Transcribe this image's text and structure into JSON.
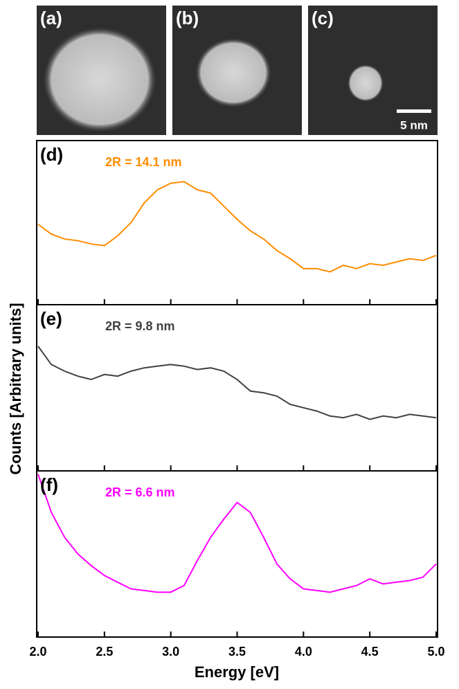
{
  "images": [
    {
      "label": "(a)"
    },
    {
      "label": "(b)"
    },
    {
      "label": "(c)"
    }
  ],
  "scale_bar": "5 nm",
  "chart_data": [
    {
      "type": "line",
      "panel_label": "(d)",
      "annotation": "2R = 14.1 nm",
      "xlim": [
        2.0,
        5.0
      ],
      "ylim": [
        0,
        100
      ],
      "x": [
        2.0,
        2.1,
        2.2,
        2.3,
        2.4,
        2.5,
        2.6,
        2.7,
        2.8,
        2.9,
        3.0,
        3.1,
        3.2,
        3.3,
        3.4,
        3.5,
        3.6,
        3.7,
        3.8,
        3.9,
        4.0,
        4.1,
        4.2,
        4.3,
        4.4,
        4.5,
        4.6,
        4.7,
        4.8,
        4.9,
        5.0
      ],
      "series": [
        {
          "name": "2R = 14.1 nm",
          "color": "#ff8c00",
          "values": [
            49,
            43,
            40,
            39,
            37,
            36,
            42,
            50,
            62,
            70,
            74,
            75,
            70,
            68,
            60,
            52,
            45,
            40,
            33,
            28,
            22,
            22,
            20,
            24,
            22,
            25,
            24,
            26,
            28,
            27,
            30
          ]
        }
      ]
    },
    {
      "type": "line",
      "panel_label": "(e)",
      "annotation": "2R = 9.8 nm",
      "ylabel": "Counts [Arbitrary units]",
      "xlim": [
        2.0,
        5.0
      ],
      "ylim": [
        0,
        100
      ],
      "x": [
        2.0,
        2.1,
        2.2,
        2.3,
        2.4,
        2.5,
        2.6,
        2.7,
        2.8,
        2.9,
        3.0,
        3.1,
        3.2,
        3.3,
        3.4,
        3.5,
        3.6,
        3.7,
        3.8,
        3.9,
        4.0,
        4.1,
        4.2,
        4.3,
        4.4,
        4.5,
        4.6,
        4.7,
        4.8,
        4.9,
        5.0
      ],
      "series": [
        {
          "name": "2R = 9.8 nm",
          "color": "#404040",
          "values": [
            75,
            64,
            60,
            57,
            55,
            58,
            57,
            60,
            62,
            63,
            64,
            63,
            61,
            62,
            60,
            55,
            48,
            47,
            45,
            40,
            38,
            36,
            33,
            32,
            34,
            31,
            33,
            32,
            34,
            33,
            32
          ]
        }
      ]
    },
    {
      "type": "line",
      "panel_label": "(f)",
      "annotation": "2R = 6.6 nm",
      "xlabel": "Energy [eV]",
      "xlim": [
        2.0,
        5.0
      ],
      "ylim": [
        0,
        100
      ],
      "xticks": [
        {
          "value": 2,
          "label": "2.0"
        },
        2.5,
        {
          "value": 3,
          "label": "3.0"
        },
        3.5,
        {
          "value": 4,
          "label": "4.0"
        },
        4.5,
        {
          "value": 5,
          "label": "5.0"
        }
      ],
      "x": [
        2.0,
        2.1,
        2.2,
        2.3,
        2.4,
        2.5,
        2.6,
        2.7,
        2.8,
        2.9,
        3.0,
        3.1,
        3.2,
        3.3,
        3.4,
        3.5,
        3.6,
        3.7,
        3.8,
        3.9,
        4.0,
        4.1,
        4.2,
        4.3,
        4.4,
        4.5,
        4.6,
        4.7,
        4.8,
        4.9,
        5.0
      ],
      "series": [
        {
          "name": "2R = 6.6 nm",
          "color": "#ff00ff",
          "values": [
            98,
            75,
            60,
            50,
            43,
            37,
            33,
            29,
            28,
            27,
            27,
            31,
            46,
            60,
            71,
            81,
            75,
            60,
            44,
            35,
            29,
            28,
            27,
            29,
            31,
            35,
            32,
            33,
            34,
            36,
            44
          ]
        }
      ]
    }
  ]
}
